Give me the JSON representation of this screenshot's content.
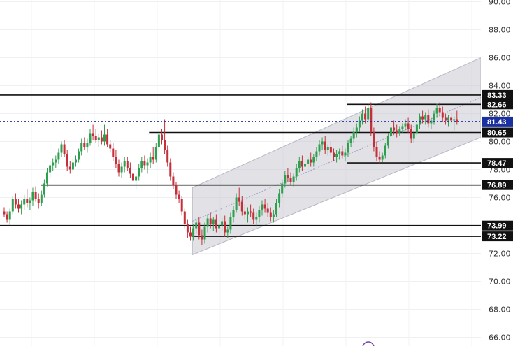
{
  "chart_data": {
    "type": "candlestick",
    "title": "",
    "xlabel": "",
    "ylabel": "",
    "ylim": [
      66,
      90
    ],
    "y_ticks": [
      "66.00",
      "68.00",
      "70.00",
      "72.00",
      "74.00",
      "76.00",
      "78.00",
      "80.00",
      "82.00",
      "84.00",
      "86.00",
      "88.00",
      "90.00"
    ],
    "grid": true,
    "current_price": {
      "value": 81.43,
      "label": "81.43",
      "color": "#1a2fa0"
    },
    "levels": [
      {
        "name": "level-83-33",
        "value": 83.33,
        "label": "83.33",
        "x_start": 0
      },
      {
        "name": "level-82-66",
        "value": 82.66,
        "label": "82.66",
        "x_start": 0.722
      },
      {
        "name": "level-80-65",
        "value": 80.65,
        "label": "80.65",
        "x_start": 0.31
      },
      {
        "name": "level-78-47",
        "value": 78.47,
        "label": "78.47",
        "x_start": 0.722
      },
      {
        "name": "level-76-89",
        "value": 76.89,
        "label": "76.89",
        "x_start": 0.085
      },
      {
        "name": "level-73-99",
        "value": 73.99,
        "label": "73.99",
        "x_start": 0
      },
      {
        "name": "level-73-22",
        "value": 73.22,
        "label": "73.22",
        "x_start": 0.4
      }
    ],
    "channel": {
      "x_start": 0.4,
      "x_end": 1.0,
      "upper": [
        76.7,
        86.0
      ],
      "lower": [
        71.9,
        80.3
      ],
      "color": "#c8c8d2"
    },
    "candle_colors": {
      "up": "#2e9e4f",
      "down": "#c42f3a"
    },
    "x_count": 170,
    "candles": [
      [
        0,
        75.0,
        75.3,
        74.6,
        74.8
      ],
      [
        1,
        74.8,
        75.0,
        74.2,
        74.4
      ],
      [
        2,
        74.4,
        75.2,
        74.0,
        75.0
      ],
      [
        3,
        75.0,
        76.1,
        74.8,
        75.9
      ],
      [
        4,
        75.9,
        76.3,
        75.2,
        75.5
      ],
      [
        5,
        75.5,
        75.9,
        74.9,
        75.2
      ],
      [
        6,
        75.2,
        75.8,
        74.8,
        75.5
      ],
      [
        7,
        75.5,
        76.2,
        75.1,
        75.9
      ],
      [
        8,
        75.9,
        76.6,
        75.3,
        75.6
      ],
      [
        9,
        75.6,
        76.0,
        75.1,
        75.8
      ],
      [
        10,
        75.8,
        76.7,
        75.4,
        76.4
      ],
      [
        11,
        76.4,
        76.8,
        75.7,
        75.9
      ],
      [
        12,
        75.9,
        76.3,
        75.2,
        75.6
      ],
      [
        13,
        75.6,
        76.5,
        75.4,
        76.2
      ],
      [
        14,
        76.2,
        77.3,
        76.0,
        77.0
      ],
      [
        15,
        77.0,
        78.1,
        76.8,
        77.8
      ],
      [
        16,
        77.8,
        78.6,
        77.4,
        78.3
      ],
      [
        17,
        78.3,
        78.8,
        77.9,
        78.5
      ],
      [
        18,
        78.5,
        79.0,
        78.1,
        78.7
      ],
      [
        19,
        78.7,
        79.5,
        78.4,
        79.2
      ],
      [
        20,
        79.2,
        80.0,
        78.9,
        79.8
      ],
      [
        21,
        79.8,
        80.1,
        78.9,
        79.1
      ],
      [
        22,
        79.1,
        79.4,
        77.9,
        78.2
      ],
      [
        23,
        78.2,
        78.6,
        77.7,
        78.0
      ],
      [
        24,
        78.0,
        78.8,
        77.8,
        78.5
      ],
      [
        25,
        78.5,
        79.0,
        78.2,
        78.7
      ],
      [
        26,
        78.7,
        79.5,
        78.5,
        79.3
      ],
      [
        27,
        79.3,
        80.2,
        79.0,
        79.9
      ],
      [
        28,
        79.9,
        80.3,
        79.4,
        79.6
      ],
      [
        29,
        79.6,
        80.2,
        79.2,
        79.9
      ],
      [
        30,
        79.9,
        80.9,
        79.7,
        80.6
      ],
      [
        31,
        80.6,
        81.2,
        80.1,
        80.4
      ],
      [
        32,
        80.4,
        80.9,
        79.9,
        80.1
      ],
      [
        33,
        80.1,
        80.6,
        79.6,
        80.3
      ],
      [
        34,
        80.3,
        80.8,
        79.8,
        80.0
      ],
      [
        35,
        80.0,
        81.2,
        79.7,
        80.5
      ],
      [
        36,
        80.5,
        80.9,
        79.6,
        79.8
      ],
      [
        37,
        79.8,
        80.1,
        79.2,
        79.5
      ],
      [
        38,
        79.5,
        79.9,
        78.6,
        78.9
      ],
      [
        39,
        78.9,
        79.4,
        78.1,
        78.4
      ],
      [
        40,
        78.4,
        78.7,
        77.5,
        77.8
      ],
      [
        41,
        77.8,
        78.5,
        77.4,
        78.2
      ],
      [
        42,
        78.2,
        78.9,
        77.8,
        78.6
      ],
      [
        43,
        78.6,
        78.9,
        77.9,
        78.1
      ],
      [
        44,
        78.1,
        78.5,
        77.4,
        77.7
      ],
      [
        45,
        77.7,
        78.1,
        76.9,
        77.2
      ],
      [
        46,
        77.2,
        77.7,
        76.6,
        77.5
      ],
      [
        47,
        77.5,
        78.4,
        77.2,
        78.1
      ],
      [
        48,
        78.1,
        78.9,
        77.8,
        78.6
      ],
      [
        49,
        78.6,
        79.0,
        78.0,
        78.3
      ],
      [
        50,
        78.3,
        78.8,
        77.7,
        78.5
      ],
      [
        51,
        78.5,
        79.2,
        78.1,
        78.9
      ],
      [
        52,
        78.9,
        79.6,
        78.4,
        78.7
      ],
      [
        53,
        78.7,
        79.9,
        78.5,
        79.6
      ],
      [
        54,
        79.6,
        80.8,
        79.2,
        80.5
      ],
      [
        55,
        80.5,
        80.9,
        79.8,
        80.1
      ],
      [
        56,
        80.1,
        81.6,
        79.1,
        79.4
      ],
      [
        57,
        79.4,
        79.7,
        78.2,
        78.5
      ],
      [
        58,
        78.5,
        78.8,
        77.2,
        77.5
      ],
      [
        59,
        77.5,
        77.8,
        76.6,
        76.9
      ],
      [
        60,
        76.9,
        77.1,
        75.9,
        76.2
      ],
      [
        61,
        76.2,
        76.5,
        75.6,
        75.9
      ],
      [
        62,
        75.9,
        76.1,
        74.7,
        75.0
      ],
      [
        63,
        75.0,
        75.2,
        73.8,
        74.1
      ],
      [
        64,
        74.1,
        74.4,
        73.1,
        73.5
      ],
      [
        65,
        73.5,
        73.9,
        72.9,
        73.2
      ],
      [
        66,
        73.2,
        74.1,
        72.9,
        73.8
      ],
      [
        67,
        73.8,
        74.4,
        73.4,
        74.2
      ],
      [
        68,
        74.2,
        74.6,
        73.0,
        73.3
      ],
      [
        69,
        73.3,
        73.7,
        72.6,
        73.0
      ],
      [
        70,
        73.0,
        74.2,
        72.7,
        73.9
      ],
      [
        71,
        73.9,
        74.8,
        73.5,
        74.5
      ],
      [
        72,
        74.5,
        74.9,
        73.8,
        74.1
      ],
      [
        73,
        74.1,
        74.6,
        73.6,
        74.4
      ],
      [
        74,
        74.4,
        74.8,
        73.5,
        73.8
      ],
      [
        75,
        73.8,
        74.3,
        73.3,
        74.0
      ],
      [
        76,
        74.0,
        74.6,
        73.6,
        74.3
      ],
      [
        77,
        74.3,
        74.7,
        73.2,
        73.5
      ],
      [
        78,
        73.5,
        73.9,
        73.1,
        73.7
      ],
      [
        79,
        73.7,
        74.9,
        73.4,
        74.6
      ],
      [
        80,
        74.6,
        75.4,
        74.2,
        75.1
      ],
      [
        81,
        75.1,
        76.3,
        74.9,
        76.0
      ],
      [
        82,
        76.0,
        76.7,
        75.4,
        75.7
      ],
      [
        83,
        75.7,
        76.1,
        74.7,
        75.0
      ],
      [
        84,
        75.0,
        75.5,
        74.4,
        74.8
      ],
      [
        85,
        74.8,
        75.3,
        74.2,
        75.0
      ],
      [
        86,
        75.0,
        75.5,
        74.6,
        74.9
      ],
      [
        87,
        74.9,
        75.2,
        74.1,
        74.4
      ],
      [
        88,
        74.4,
        74.9,
        73.9,
        74.6
      ],
      [
        89,
        74.6,
        75.4,
        74.2,
        75.1
      ],
      [
        90,
        75.1,
        75.8,
        74.7,
        75.5
      ],
      [
        91,
        75.5,
        75.9,
        74.9,
        75.2
      ],
      [
        92,
        75.2,
        75.6,
        74.6,
        74.9
      ],
      [
        93,
        74.9,
        75.3,
        74.3,
        74.6
      ],
      [
        94,
        74.6,
        75.1,
        74.2,
        74.8
      ],
      [
        95,
        74.8,
        75.9,
        74.6,
        75.6
      ],
      [
        96,
        75.6,
        76.6,
        75.3,
        76.3
      ],
      [
        97,
        76.3,
        77.3,
        76.0,
        77.0
      ],
      [
        98,
        77.0,
        77.9,
        76.7,
        77.6
      ],
      [
        99,
        77.6,
        78.1,
        77.1,
        77.4
      ],
      [
        100,
        77.4,
        77.8,
        76.9,
        77.1
      ],
      [
        101,
        77.1,
        77.7,
        76.8,
        77.5
      ],
      [
        102,
        77.5,
        78.4,
        77.2,
        78.1
      ],
      [
        103,
        78.1,
        78.9,
        77.8,
        78.6
      ],
      [
        104,
        78.6,
        79.0,
        77.9,
        78.2
      ],
      [
        105,
        78.2,
        78.7,
        77.7,
        78.4
      ],
      [
        106,
        78.4,
        78.9,
        78.0,
        78.7
      ],
      [
        107,
        78.7,
        79.2,
        78.2,
        78.5
      ],
      [
        108,
        78.5,
        79.1,
        78.2,
        78.9
      ],
      [
        109,
        78.9,
        79.6,
        78.6,
        79.3
      ],
      [
        110,
        79.3,
        80.1,
        79.0,
        79.8
      ],
      [
        111,
        79.8,
        80.3,
        79.4,
        80.0
      ],
      [
        112,
        80.0,
        80.4,
        79.1,
        79.4
      ],
      [
        113,
        79.4,
        79.8,
        79.0,
        79.6
      ],
      [
        114,
        79.6,
        80.0,
        79.0,
        79.2
      ],
      [
        115,
        79.2,
        79.5,
        78.6,
        78.9
      ],
      [
        116,
        78.9,
        79.4,
        78.5,
        79.1
      ],
      [
        117,
        79.1,
        79.5,
        78.7,
        79.3
      ],
      [
        118,
        79.3,
        79.7,
        78.8,
        79.0
      ],
      [
        119,
        79.0,
        79.5,
        78.6,
        79.2
      ],
      [
        120,
        79.2,
        80.1,
        78.9,
        79.9
      ],
      [
        121,
        79.9,
        80.4,
        79.6,
        80.2
      ],
      [
        122,
        80.2,
        81.0,
        79.9,
        80.7
      ],
      [
        123,
        80.7,
        81.3,
        80.3,
        81.0
      ],
      [
        124,
        81.0,
        81.8,
        80.7,
        81.5
      ],
      [
        125,
        81.5,
        82.3,
        81.2,
        82.0
      ],
      [
        126,
        82.0,
        82.5,
        81.3,
        81.6
      ],
      [
        127,
        81.6,
        82.7,
        81.4,
        82.4
      ],
      [
        128,
        82.4,
        82.8,
        80.4,
        80.7
      ],
      [
        129,
        80.7,
        81.0,
        79.3,
        79.6
      ],
      [
        130,
        79.6,
        80.0,
        78.6,
        78.9
      ],
      [
        131,
        78.9,
        79.3,
        78.4,
        78.7
      ],
      [
        132,
        78.7,
        79.2,
        78.5,
        79.0
      ],
      [
        133,
        79.0,
        79.9,
        78.8,
        79.7
      ],
      [
        134,
        79.7,
        80.6,
        79.5,
        80.4
      ],
      [
        135,
        80.4,
        81.2,
        80.1,
        81.0
      ],
      [
        136,
        81.0,
        81.5,
        80.5,
        80.8
      ],
      [
        137,
        80.8,
        81.2,
        80.3,
        80.6
      ],
      [
        138,
        80.6,
        81.1,
        80.4,
        80.9
      ],
      [
        139,
        80.9,
        81.3,
        80.6,
        81.1
      ],
      [
        140,
        81.1,
        81.6,
        80.8,
        81.3
      ],
      [
        141,
        81.3,
        81.7,
        80.6,
        80.9
      ],
      [
        142,
        80.9,
        81.2,
        79.9,
        80.2
      ],
      [
        143,
        80.2,
        80.8,
        79.9,
        80.6
      ],
      [
        144,
        80.6,
        81.4,
        80.4,
        81.2
      ],
      [
        145,
        81.2,
        82.0,
        80.9,
        81.8
      ],
      [
        146,
        81.8,
        82.2,
        81.3,
        81.6
      ],
      [
        147,
        81.6,
        82.1,
        81.2,
        81.9
      ],
      [
        148,
        81.9,
        82.3,
        81.0,
        81.3
      ],
      [
        149,
        81.3,
        81.7,
        80.9,
        81.5
      ],
      [
        150,
        81.5,
        82.2,
        81.2,
        82.0
      ],
      [
        151,
        82.0,
        82.7,
        81.7,
        82.4
      ],
      [
        152,
        82.4,
        82.8,
        81.8,
        82.1
      ],
      [
        153,
        82.1,
        82.5,
        81.4,
        81.7
      ],
      [
        154,
        81.7,
        82.0,
        81.2,
        81.5
      ],
      [
        155,
        81.5,
        81.9,
        81.1,
        81.7
      ],
      [
        156,
        81.7,
        82.1,
        81.3,
        81.5
      ],
      [
        157,
        81.5,
        81.8,
        80.8,
        81.6
      ],
      [
        158,
        81.6,
        82.2,
        81.2,
        81.43
      ]
    ]
  },
  "footer": {
    "marker_color": "#7a3db5"
  }
}
